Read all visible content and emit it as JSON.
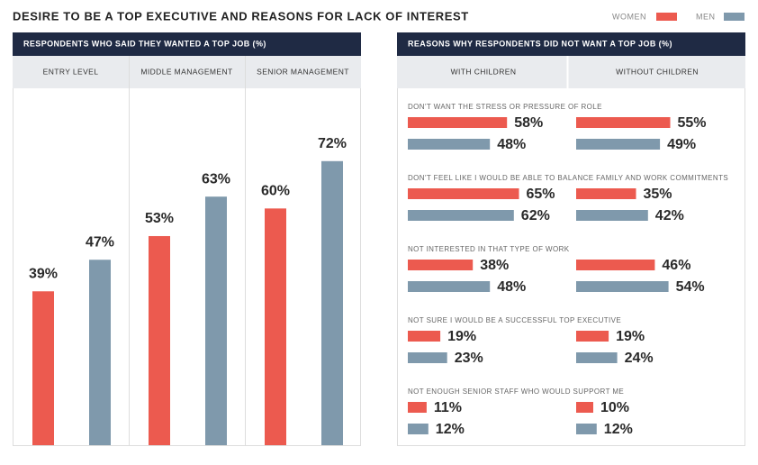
{
  "title": "DESIRE TO BE A TOP EXECUTIVE AND REASONS FOR LACK OF INTEREST",
  "chart_data": [
    {
      "type": "bar",
      "title": "RESPONDENTS WHO SAID THEY WANTED A TOP JOB (%)",
      "categories": [
        "ENTRY LEVEL",
        "MIDDLE MANAGEMENT",
        "SENIOR MANAGEMENT"
      ],
      "series": [
        {
          "name": "WOMEN",
          "color": "#ec5a4f",
          "values": [
            39,
            53,
            60
          ],
          "value_labels": [
            "39%",
            "53%",
            "60%"
          ]
        },
        {
          "name": "MEN",
          "color": "#7f99ac",
          "values": [
            47,
            63,
            72
          ],
          "value_labels": [
            "47%",
            "63%",
            "72%"
          ]
        }
      ],
      "ylim": [
        0,
        90
      ]
    },
    {
      "type": "hbar",
      "title": "REASONS WHY RESPONDENTS DID NOT WANT A TOP JOB (%)",
      "categories": [
        "DON'T WANT THE STRESS OR PRESSURE OF ROLE",
        "DON'T FEEL LIKE I WOULD BE ABLE TO BALANCE FAMILY AND WORK COMMITMENTS",
        "NOT INTERESTED IN THAT TYPE OF WORK",
        "NOT SURE I WOULD BE A SUCCESSFUL TOP EXECUTIVE",
        "NOT ENOUGH SENIOR STAFF WHO WOULD SUPPORT ME"
      ],
      "colors": [
        "#ec5a4f",
        "#7f99ac"
      ],
      "xlim": [
        0,
        100
      ],
      "panels": [
        {
          "title": "WITH CHILDREN",
          "series": [
            {
              "values": [
                58,
                65,
                38,
                19,
                11
              ],
              "value_labels": [
                "58%",
                "65%",
                "38%",
                "19%",
                "11%"
              ]
            },
            {
              "values": [
                48,
                62,
                48,
                23,
                12
              ],
              "value_labels": [
                "48%",
                "62%",
                "48%",
                "23%",
                "12%"
              ]
            }
          ]
        },
        {
          "title": "WITHOUT CHILDREN",
          "series": [
            {
              "values": [
                55,
                35,
                46,
                19,
                10
              ],
              "value_labels": [
                "55%",
                "35%",
                "46%",
                "19%",
                "10%"
              ]
            },
            {
              "values": [
                49,
                42,
                54,
                24,
                12
              ],
              "value_labels": [
                "49%",
                "42%",
                "54%",
                "24%",
                "12%"
              ]
            }
          ]
        }
      ]
    }
  ]
}
